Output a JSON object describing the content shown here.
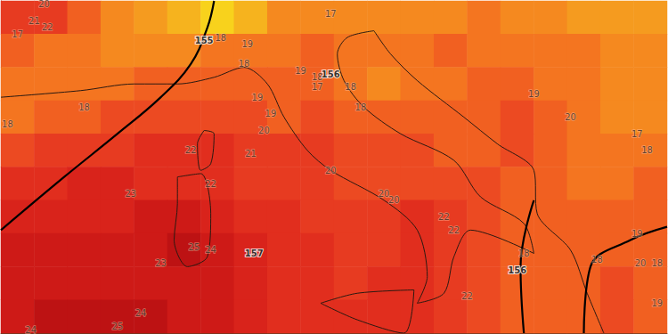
{
  "chart_data": {
    "type": "map",
    "xlim": [
      3,
      23
    ],
    "ylim": [
      37,
      47
    ],
    "tick_labels": false,
    "field": {
      "lon": [
        3.5,
        4.5,
        5.5,
        6.5,
        7.5,
        8.5,
        9.5,
        10.5,
        11.5,
        12.5,
        13.5,
        14.5,
        15.5,
        16.5,
        17.5,
        18.5,
        19.5,
        20.5,
        21.5,
        22.5
      ],
      "lat": [
        46.5,
        45.5,
        44.5,
        43.5,
        42.5,
        41.5,
        40.5,
        39.5,
        38.5,
        37.5
      ],
      "range": [
        14,
        26
      ],
      "values": [
        [
          21,
          21,
          19,
          17,
          16,
          15,
          14,
          15,
          17,
          17,
          17,
          17,
          17,
          17,
          18,
          17,
          17,
          16,
          16,
          16
        ],
        [
          19,
          18,
          18,
          17,
          17,
          17,
          18,
          18,
          18,
          19,
          18,
          18,
          18,
          19,
          18,
          18,
          18,
          18,
          17,
          17
        ],
        [
          18,
          18,
          18,
          18,
          19,
          19,
          19,
          19,
          19,
          19,
          18,
          17,
          18,
          18,
          19,
          19,
          18,
          18,
          17,
          17
        ],
        [
          18,
          19,
          19,
          20,
          20,
          20,
          20,
          20,
          19,
          20,
          19,
          19,
          19,
          19,
          19,
          20,
          19,
          18,
          17,
          17
        ],
        [
          20,
          21,
          21,
          21,
          22,
          22,
          22,
          21,
          21,
          21,
          20,
          20,
          20,
          19,
          19,
          20,
          19,
          18,
          18,
          18
        ],
        [
          22,
          22,
          23,
          23,
          22,
          22,
          22,
          21,
          21,
          21,
          20,
          20,
          20,
          20,
          20,
          19,
          19,
          18,
          18,
          19
        ],
        [
          23,
          23,
          23,
          23,
          24,
          24,
          23,
          22,
          22,
          21,
          21,
          21,
          22,
          21,
          20,
          19,
          19,
          19,
          19,
          19
        ],
        [
          24,
          24,
          24,
          24,
          24,
          25,
          24,
          23,
          22,
          22,
          21,
          21,
          22,
          21,
          20,
          19,
          19,
          19,
          19,
          19
        ],
        [
          24,
          24,
          24,
          24,
          24,
          24,
          24,
          23,
          22,
          22,
          21,
          22,
          22,
          21,
          20,
          19,
          19,
          19,
          20,
          19
        ],
        [
          24,
          25,
          25,
          25,
          25,
          24,
          24,
          23,
          22,
          22,
          22,
          22,
          22,
          21,
          20,
          19,
          19,
          19,
          20,
          19
        ]
      ]
    },
    "temperature_labels": [
      {
        "lon": 3.5,
        "lat": 46.0,
        "value": 17
      },
      {
        "lon": 4.3,
        "lat": 46.9,
        "value": 20
      },
      {
        "lon": 4.0,
        "lat": 46.4,
        "value": 21
      },
      {
        "lon": 4.4,
        "lat": 46.2,
        "value": 22
      },
      {
        "lon": 5.5,
        "lat": 43.8,
        "value": 18
      },
      {
        "lon": 3.2,
        "lat": 43.3,
        "value": 18
      },
      {
        "lon": 9.6,
        "lat": 45.9,
        "value": 18
      },
      {
        "lon": 10.4,
        "lat": 45.7,
        "value": 19
      },
      {
        "lon": 10.3,
        "lat": 45.1,
        "value": 18
      },
      {
        "lon": 12.9,
        "lat": 46.6,
        "value": 17
      },
      {
        "lon": 12.0,
        "lat": 44.9,
        "value": 19
      },
      {
        "lon": 12.5,
        "lat": 44.7,
        "value": 18
      },
      {
        "lon": 12.5,
        "lat": 44.4,
        "value": 17
      },
      {
        "lon": 13.5,
        "lat": 44.4,
        "value": 18
      },
      {
        "lon": 13.8,
        "lat": 43.8,
        "value": 18
      },
      {
        "lon": 10.7,
        "lat": 44.1,
        "value": 19
      },
      {
        "lon": 11.1,
        "lat": 43.6,
        "value": 19
      },
      {
        "lon": 10.9,
        "lat": 43.1,
        "value": 20
      },
      {
        "lon": 10.5,
        "lat": 42.4,
        "value": 21
      },
      {
        "lon": 8.7,
        "lat": 42.5,
        "value": 22
      },
      {
        "lon": 9.3,
        "lat": 41.5,
        "value": 22
      },
      {
        "lon": 6.9,
        "lat": 41.2,
        "value": 23
      },
      {
        "lon": 8.8,
        "lat": 39.6,
        "value": 25
      },
      {
        "lon": 9.3,
        "lat": 39.5,
        "value": 24
      },
      {
        "lon": 7.8,
        "lat": 39.1,
        "value": 23
      },
      {
        "lon": 7.2,
        "lat": 37.6,
        "value": 24
      },
      {
        "lon": 6.5,
        "lat": 37.2,
        "value": 25
      },
      {
        "lon": 3.9,
        "lat": 37.1,
        "value": 24
      },
      {
        "lon": 12.9,
        "lat": 41.9,
        "value": 20
      },
      {
        "lon": 14.5,
        "lat": 41.2,
        "value": 20
      },
      {
        "lon": 14.8,
        "lat": 41.0,
        "value": 20
      },
      {
        "lon": 16.3,
        "lat": 40.5,
        "value": 22
      },
      {
        "lon": 16.6,
        "lat": 40.1,
        "value": 22
      },
      {
        "lon": 17.0,
        "lat": 38.1,
        "value": 22
      },
      {
        "lon": 18.7,
        "lat": 39.4,
        "value": 18
      },
      {
        "lon": 20.9,
        "lat": 39.2,
        "value": 18
      },
      {
        "lon": 19.0,
        "lat": 44.2,
        "value": 19
      },
      {
        "lon": 20.1,
        "lat": 43.5,
        "value": 20
      },
      {
        "lon": 22.1,
        "lat": 43.0,
        "value": 17
      },
      {
        "lon": 22.4,
        "lat": 42.5,
        "value": 18
      },
      {
        "lon": 22.1,
        "lat": 40.0,
        "value": 19
      },
      {
        "lon": 22.2,
        "lat": 39.1,
        "value": 20
      },
      {
        "lon": 22.7,
        "lat": 39.1,
        "value": 18
      },
      {
        "lon": 22.7,
        "lat": 37.9,
        "value": 19
      }
    ],
    "height_labels": [
      {
        "lon": 9.1,
        "lat": 45.8,
        "value": 155
      },
      {
        "lon": 12.9,
        "lat": 44.8,
        "value": 156
      },
      {
        "lon": 10.6,
        "lat": 39.4,
        "value": 157
      },
      {
        "lon": 18.5,
        "lat": 38.9,
        "value": 156
      }
    ],
    "contours": [
      {
        "color": "#000000",
        "values": [
          [
            9.4,
            47.0
          ],
          [
            9.2,
            46.2
          ],
          [
            8.7,
            45.1
          ],
          [
            7.8,
            44.1
          ],
          [
            6.5,
            43.0
          ],
          [
            4.9,
            41.7
          ],
          [
            3.0,
            40.1
          ]
        ]
      },
      {
        "color": "#000000",
        "values": [
          [
            19.0,
            41.0
          ],
          [
            18.6,
            39.0
          ],
          [
            18.7,
            37.0
          ]
        ]
      },
      {
        "color": "#000000",
        "values": [
          [
            20.5,
            37.0
          ],
          [
            20.7,
            39.0
          ],
          [
            21.9,
            39.8
          ],
          [
            23.0,
            40.2
          ]
        ]
      }
    ],
    "coastlines": [
      [
        [
          3.0,
          44.1
        ],
        [
          5.4,
          44.3
        ],
        [
          7.0,
          44.5
        ],
        [
          8.3,
          44.5
        ],
        [
          9.4,
          44.7
        ],
        [
          10.3,
          45.0
        ],
        [
          11.0,
          44.5
        ],
        [
          11.5,
          43.5
        ],
        [
          12.2,
          42.5
        ],
        [
          12.9,
          41.9
        ],
        [
          14.5,
          41.0
        ],
        [
          15.5,
          40.1
        ],
        [
          15.8,
          38.7
        ],
        [
          15.5,
          37.9
        ],
        [
          16.3,
          38.2
        ],
        [
          16.6,
          39.3
        ],
        [
          17.1,
          40.1
        ],
        [
          19.0,
          39.4
        ],
        [
          18.7,
          40.3
        ],
        [
          17.4,
          41.1
        ],
        [
          16.6,
          42.2
        ],
        [
          15.0,
          43.0
        ],
        [
          13.9,
          43.8
        ],
        [
          13.3,
          44.6
        ],
        [
          13.1,
          45.4
        ],
        [
          13.4,
          45.9
        ],
        [
          14.2,
          46.1
        ]
      ],
      [
        [
          14.2,
          46.1
        ],
        [
          14.7,
          45.4
        ],
        [
          15.5,
          44.6
        ],
        [
          16.9,
          43.5
        ],
        [
          17.9,
          42.7
        ],
        [
          19.0,
          41.9
        ],
        [
          19.1,
          40.6
        ],
        [
          20.1,
          39.5
        ],
        [
          20.6,
          38.2
        ],
        [
          21.1,
          37.0
        ]
      ],
      [
        [
          8.3,
          41.7
        ],
        [
          9.0,
          41.8
        ],
        [
          9.3,
          40.6
        ],
        [
          9.2,
          39.3
        ],
        [
          8.6,
          39.0
        ],
        [
          8.2,
          39.8
        ],
        [
          8.3,
          40.9
        ],
        [
          8.3,
          41.7
        ]
      ],
      [
        [
          9.1,
          43.1
        ],
        [
          9.4,
          43.0
        ],
        [
          9.3,
          42.1
        ],
        [
          9.0,
          41.9
        ],
        [
          8.9,
          42.7
        ],
        [
          9.1,
          43.1
        ]
      ],
      [
        [
          12.6,
          37.9
        ],
        [
          13.7,
          38.2
        ],
        [
          15.4,
          38.3
        ],
        [
          15.1,
          37.0
        ],
        [
          13.7,
          37.4
        ],
        [
          12.6,
          37.9
        ]
      ]
    ]
  }
}
